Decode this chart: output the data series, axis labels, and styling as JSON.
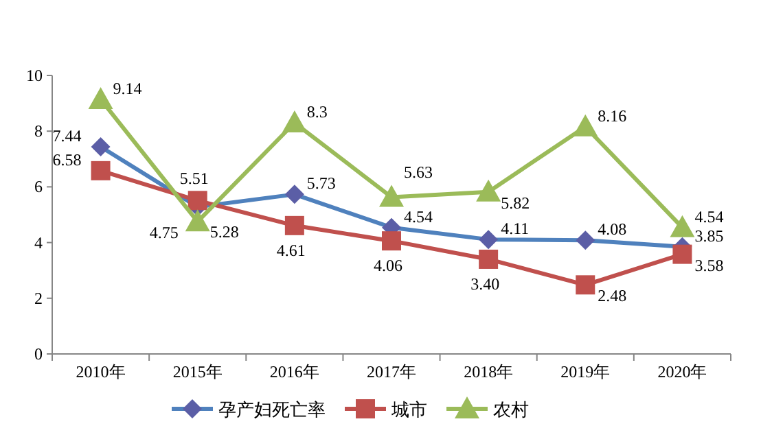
{
  "chart_data": {
    "type": "line",
    "categories": [
      "2010年",
      "2015年",
      "2016年",
      "2017年",
      "2018年",
      "2019年",
      "2020年"
    ],
    "series": [
      {
        "name": "孕产妇死亡率",
        "color": "#4f81bd",
        "marker": "diamond",
        "values": [
          7.44,
          5.28,
          5.73,
          4.54,
          4.11,
          4.08,
          3.85
        ],
        "value_labels": [
          "7.44",
          "5.28",
          "5.73",
          "4.54",
          "4.11",
          "4.08",
          "3.85"
        ]
      },
      {
        "name": "城市",
        "color": "#c0504d",
        "marker": "square",
        "values": [
          6.58,
          5.51,
          4.61,
          4.06,
          3.4,
          2.48,
          3.58
        ],
        "value_labels": [
          "6.58",
          "5.51",
          "4.61",
          "4.06",
          "3.40",
          "2.48",
          "3.58"
        ]
      },
      {
        "name": "农村",
        "color": "#9bbb59",
        "marker": "triangle",
        "values": [
          9.14,
          4.75,
          8.3,
          5.63,
          5.82,
          8.16,
          4.54
        ],
        "value_labels": [
          "9.14",
          "4.75",
          "8.3",
          "5.63",
          "5.82",
          "8.16",
          "4.54"
        ]
      }
    ],
    "ylim": [
      0,
      10
    ],
    "yticks": [
      0,
      2,
      4,
      6,
      8,
      10
    ],
    "grid": false,
    "legend": "bottom"
  }
}
